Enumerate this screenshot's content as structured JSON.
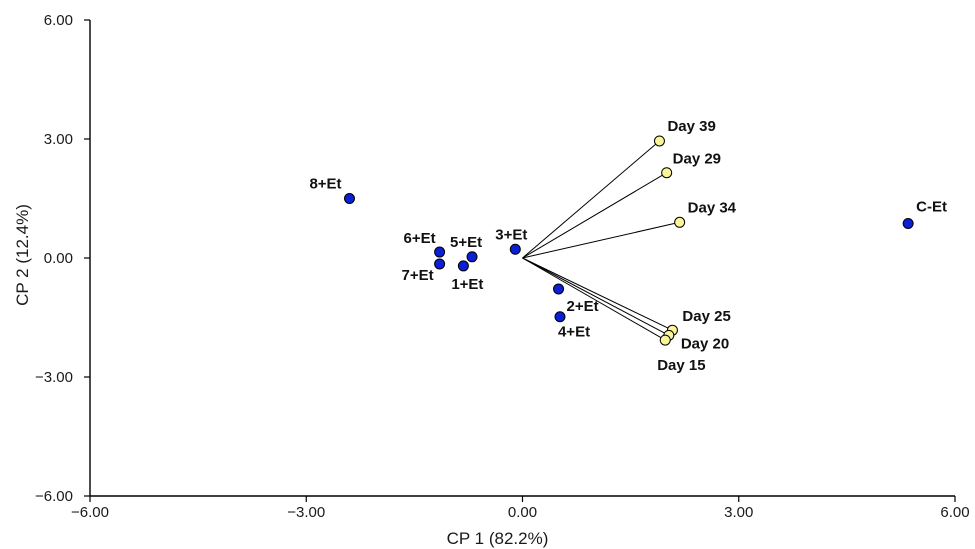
{
  "chart_data": {
    "type": "scatter",
    "title": "",
    "xlabel": "CP 1 (82.2%)",
    "ylabel": "CP 2 (12.4%)",
    "xlim": [
      -6,
      6
    ],
    "ylim": [
      -6,
      6
    ],
    "xticks": [
      "−6.00",
      "−3.00",
      "0.00",
      "3.00",
      "6.00"
    ],
    "yticks": [
      "6.00",
      "3.00",
      "0.00",
      "−3.00",
      "−6.00"
    ],
    "xtick_values": [
      -6,
      -3,
      0,
      3,
      6
    ],
    "ytick_values": [
      6,
      3,
      0,
      -3,
      -6
    ],
    "grid": false,
    "colors": {
      "samples": "#0a1fd6",
      "variables": "#fbf59a",
      "outline": "#000000"
    },
    "series": [
      {
        "name": "",
        "color": "#0a1fd6",
        "points": [
          {
            "label": "8+Et",
            "x": -2.4,
            "y": 1.5
          },
          {
            "label": "6+Et",
            "x": -1.15,
            "y": 0.15
          },
          {
            "label": "7+Et",
            "x": -1.15,
            "y": -0.15
          },
          {
            "label": "5+Et",
            "x": -0.7,
            "y": 0.03
          },
          {
            "label": "1+Et",
            "x": -0.82,
            "y": -0.2
          },
          {
            "label": "3+Et",
            "x": -0.1,
            "y": 0.22
          },
          {
            "label": "2+Et",
            "x": 0.5,
            "y": -0.78
          },
          {
            "label": "4+Et",
            "x": 0.52,
            "y": -1.48
          },
          {
            "label": "C-Et",
            "x": 5.35,
            "y": 0.87
          }
        ]
      },
      {
        "name": "",
        "color": "#fbf59a",
        "vectors": true,
        "points": [
          {
            "label": "Day 39",
            "x": 1.9,
            "y": 2.95
          },
          {
            "label": "Day 29",
            "x": 2.0,
            "y": 2.15
          },
          {
            "label": "Day 34",
            "x": 2.18,
            "y": 0.9
          },
          {
            "label": "Day 25",
            "x": 2.08,
            "y": -1.82
          },
          {
            "label": "Day 20",
            "x": 2.03,
            "y": -1.95
          },
          {
            "label": "Day 15",
            "x": 1.98,
            "y": -2.07
          }
        ]
      }
    ]
  }
}
